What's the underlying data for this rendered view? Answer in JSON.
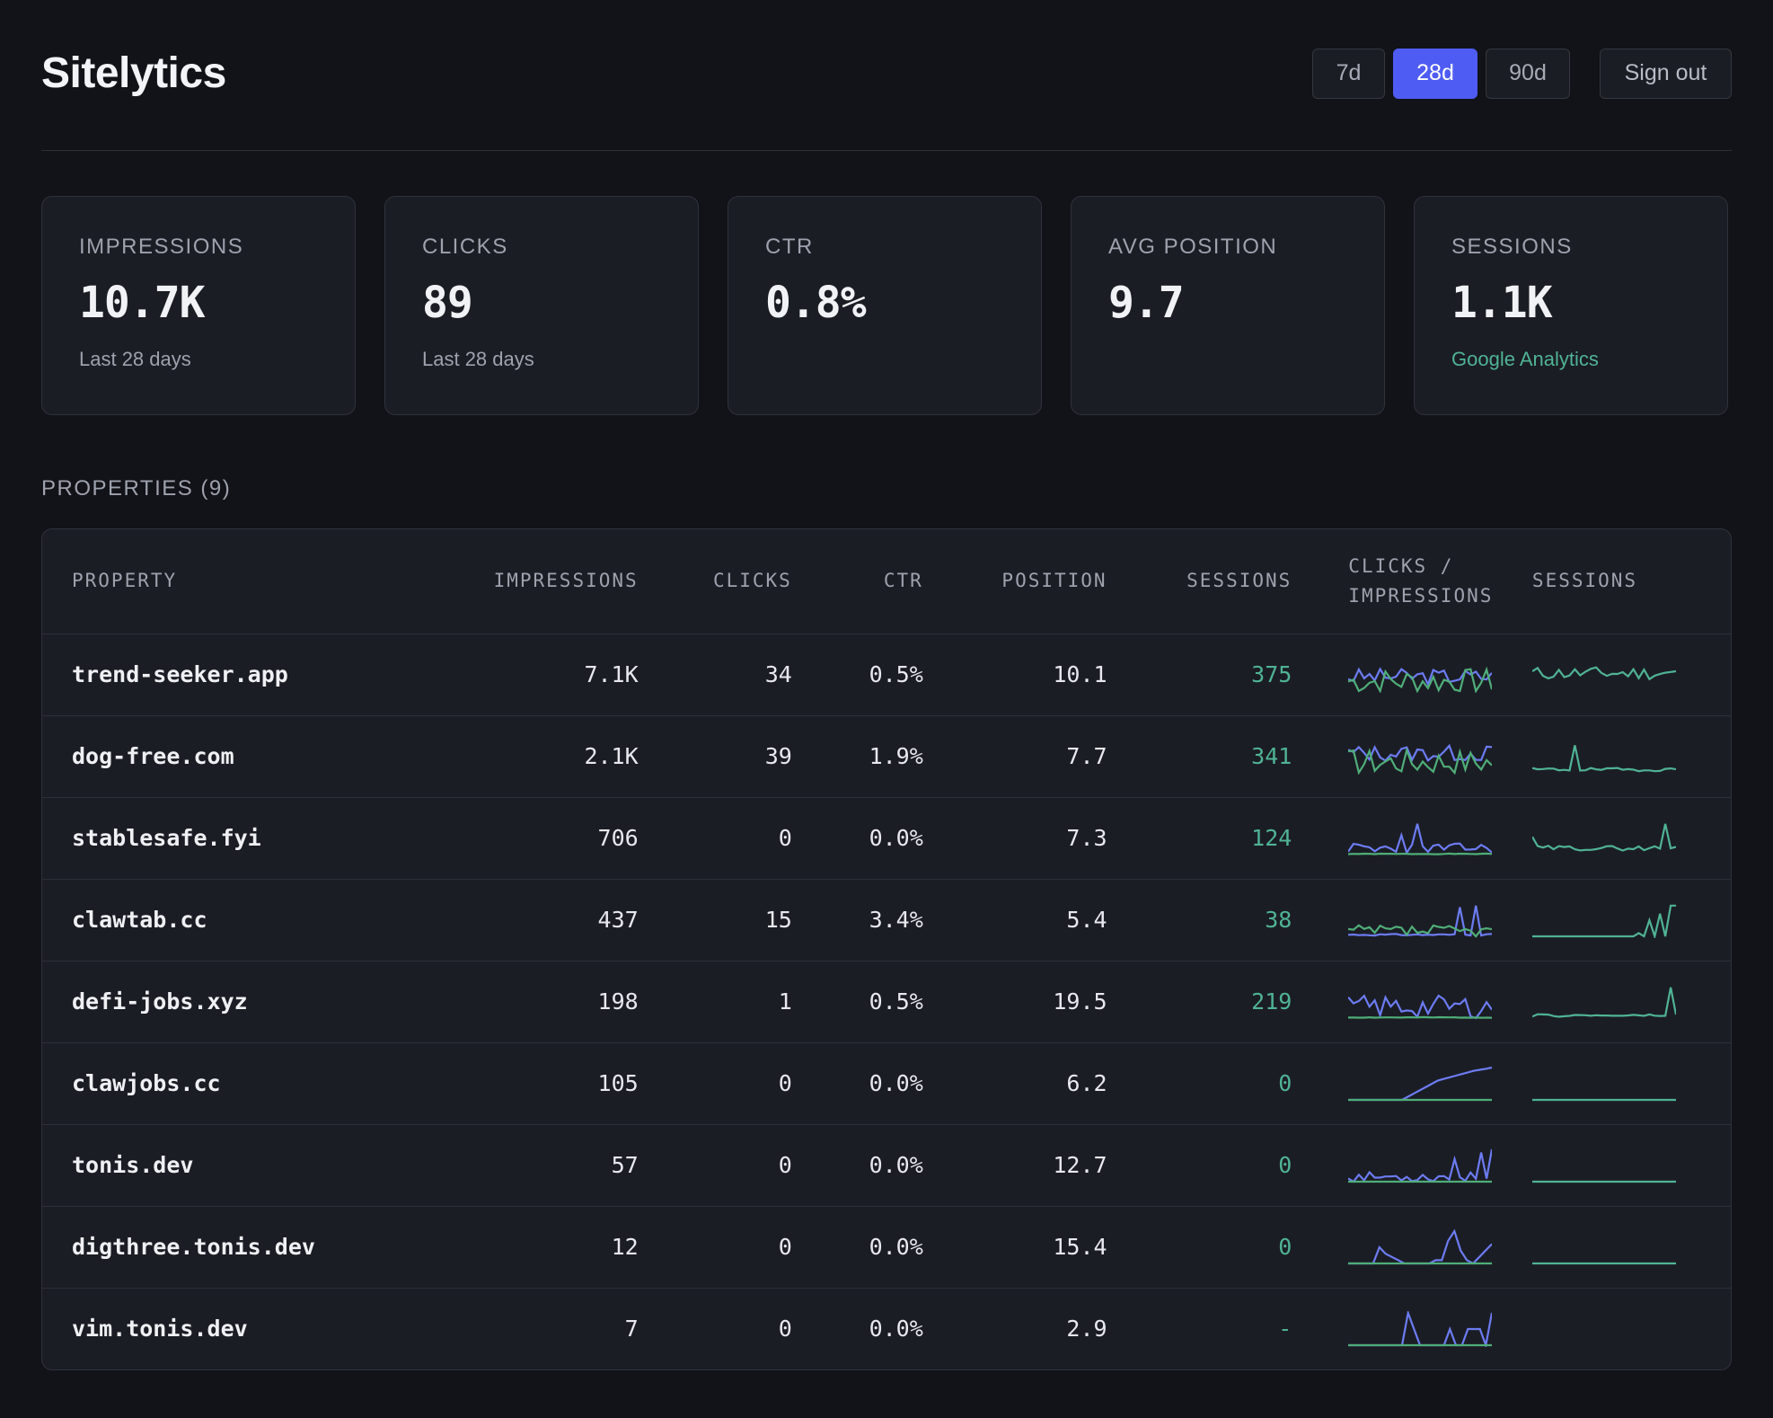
{
  "app": {
    "title": "Sitelytics"
  },
  "controls": {
    "ranges": [
      {
        "label": "7d",
        "active": false
      },
      {
        "label": "28d",
        "active": true
      },
      {
        "label": "90d",
        "active": false
      }
    ],
    "signout_label": "Sign out"
  },
  "kpis": [
    {
      "label": "IMPRESSIONS",
      "value": "10.7K",
      "sub": "Last 28 days"
    },
    {
      "label": "CLICKS",
      "value": "89",
      "sub": "Last 28 days"
    },
    {
      "label": "CTR",
      "value": "0.8%",
      "sub": ""
    },
    {
      "label": "AVG POSITION",
      "value": "9.7",
      "sub": ""
    },
    {
      "label": "SESSIONS",
      "value": "1.1K",
      "sub": "Google Analytics"
    }
  ],
  "properties_title": "PROPERTIES (9)",
  "table": {
    "headers": {
      "property": "PROPERTY",
      "impressions": "IMPRESSIONS",
      "clicks": "CLICKS",
      "ctr": "CTR",
      "position": "POSITION",
      "sessions": "SESSIONS",
      "clicks_impr_1": "CLICKS /",
      "clicks_impr_2": "IMPRESSIONS",
      "sessions_spark": "SESSIONS"
    },
    "rows": [
      {
        "property": "trend-seeker.app",
        "impressions": "7.1K",
        "clicks": "34",
        "ctr": "0.5%",
        "position": "10.1",
        "sessions": "375"
      },
      {
        "property": "dog-free.com",
        "impressions": "2.1K",
        "clicks": "39",
        "ctr": "1.9%",
        "position": "7.7",
        "sessions": "341"
      },
      {
        "property": "stablesafe.fyi",
        "impressions": "706",
        "clicks": "0",
        "ctr": "0.0%",
        "position": "7.3",
        "sessions": "124"
      },
      {
        "property": "clawtab.cc",
        "impressions": "437",
        "clicks": "15",
        "ctr": "3.4%",
        "position": "5.4",
        "sessions": "38"
      },
      {
        "property": "defi-jobs.xyz",
        "impressions": "198",
        "clicks": "1",
        "ctr": "0.5%",
        "position": "19.5",
        "sessions": "219"
      },
      {
        "property": "clawjobs.cc",
        "impressions": "105",
        "clicks": "0",
        "ctr": "0.0%",
        "position": "6.2",
        "sessions": "0"
      },
      {
        "property": "tonis.dev",
        "impressions": "57",
        "clicks": "0",
        "ctr": "0.0%",
        "position": "12.7",
        "sessions": "0"
      },
      {
        "property": "digthree.tonis.dev",
        "impressions": "12",
        "clicks": "0",
        "ctr": "0.0%",
        "position": "15.4",
        "sessions": "0"
      },
      {
        "property": "vim.tonis.dev",
        "impressions": "7",
        "clicks": "0",
        "ctr": "0.0%",
        "position": "2.9",
        "sessions": "-"
      }
    ]
  },
  "colors": {
    "accent": "#4f5cf4",
    "impressions_line": "#6c7cf2",
    "clicks_line": "#4fae78",
    "sessions_line": "#4fb394"
  }
}
